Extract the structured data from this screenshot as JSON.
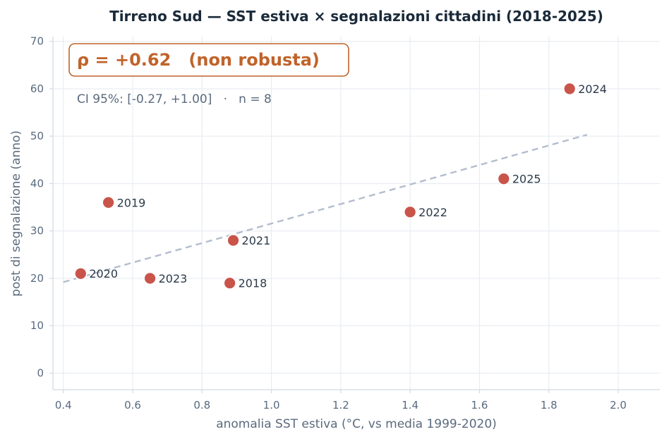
{
  "chart_data": {
    "type": "scatter",
    "title": "Tirreno Sud — SST estiva × segnalazioni cittadini (2018-2025)",
    "xlabel": "anomalia SST estiva (°C, vs media 1999-2020)",
    "ylabel": "post di segnalazione (anno)",
    "xlim": [
      0.37,
      2.12
    ],
    "ylim": [
      -3.5,
      71
    ],
    "xticks": [
      "0.4",
      "0.6",
      "0.8",
      "1.0",
      "1.2",
      "1.4",
      "1.6",
      "1.8",
      "2.0"
    ],
    "yticks": [
      "0",
      "10",
      "20",
      "30",
      "40",
      "50",
      "60",
      "70"
    ],
    "grid": true,
    "points": [
      {
        "label": "2018",
        "x": 0.88,
        "y": 19
      },
      {
        "label": "2019",
        "x": 0.53,
        "y": 36
      },
      {
        "label": "2020",
        "x": 0.45,
        "y": 21
      },
      {
        "label": "2021",
        "x": 0.89,
        "y": 28
      },
      {
        "label": "2022",
        "x": 1.4,
        "y": 34
      },
      {
        "label": "2023",
        "x": 0.65,
        "y": 20
      },
      {
        "label": "2024",
        "x": 1.86,
        "y": 60
      },
      {
        "label": "2025",
        "x": 1.67,
        "y": 41
      }
    ],
    "trendline": {
      "x": [
        0.4,
        1.91
      ],
      "y": [
        19.2,
        50.3
      ],
      "style": "dashed"
    },
    "annotation": {
      "correlation": "ρ = +0.62   (non robusta)",
      "ci": "CI 95%: [-0.27, +1.00]   ·   n = 8"
    },
    "colors": {
      "point": "#c9544a",
      "point_edge": "#ffffff",
      "trendline": "#b3bdcf",
      "annotation": "#c0632a",
      "grid": "#e9edf2",
      "title": "#1a2a3a",
      "axis_text": "#5a6a7e"
    }
  }
}
